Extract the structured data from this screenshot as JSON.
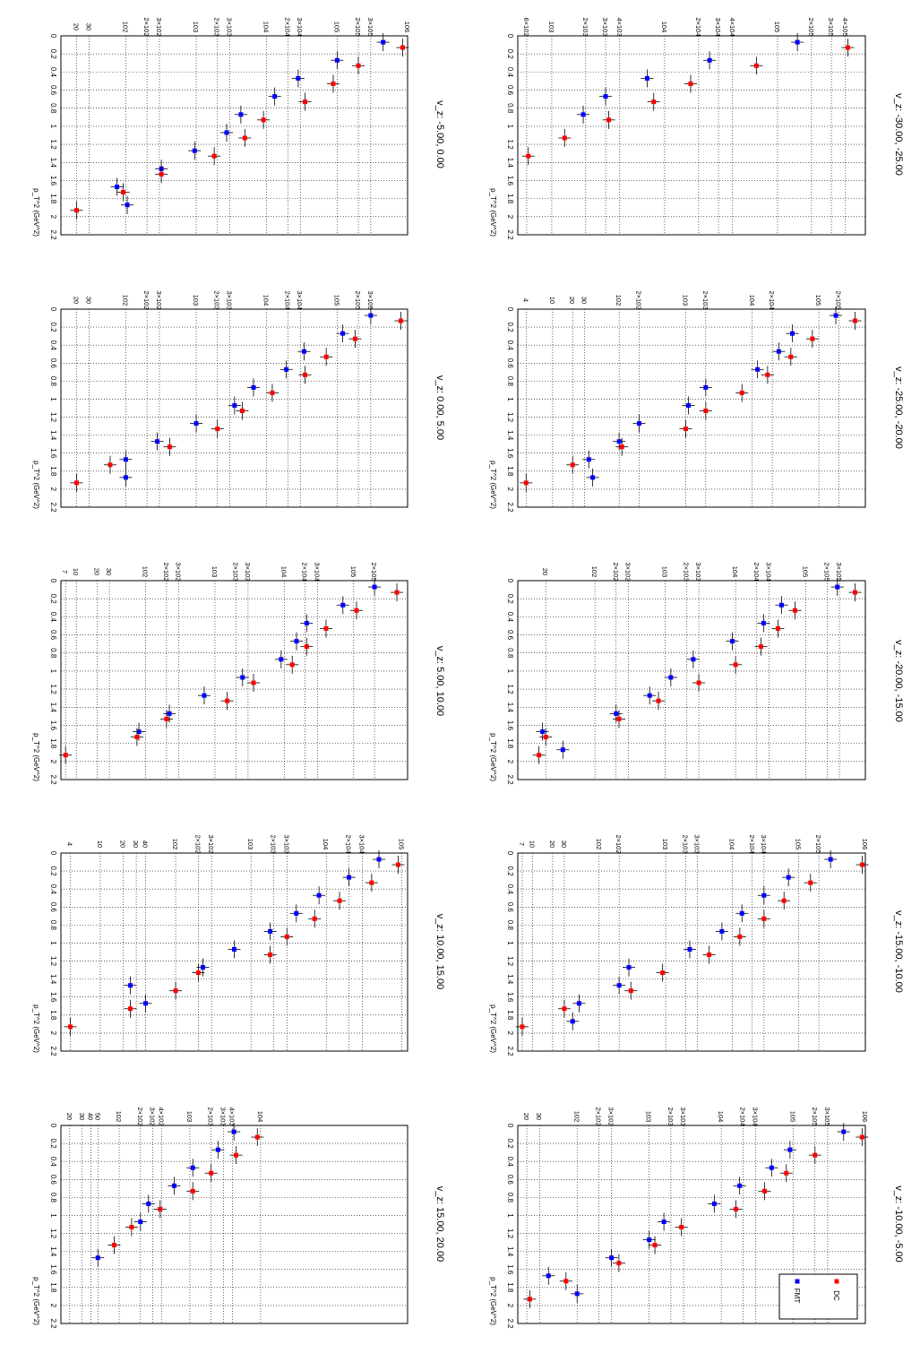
{
  "style": {
    "fmt_color": "#0000ff",
    "dc_color": "#ff0000",
    "grid": true,
    "orientation": "rotated-90-clockwise",
    "x_axis": "p_T^2",
    "y_axis": "log"
  },
  "chart_data": [
    {
      "type": "scatter",
      "title": "v_z: -30.00, -25.00",
      "xlabel": "p_T^2 (GeV^2)",
      "ylabel": "",
      "xlim": [
        0,
        2.2
      ],
      "ylog": true,
      "ylim": [
        500,
        600000
      ],
      "y_ticks": [
        "6×10^2",
        "10^3",
        "2×10^3",
        "3×10^3",
        "4×10^3",
        "10^4",
        "2×10^4",
        "3×10^4",
        "4×10^4",
        "10^5",
        "2×10^5",
        "3×10^5",
        "4×10^5"
      ],
      "y_tick_values": [
        600,
        1000,
        2000,
        3000,
        4000,
        10000,
        20000,
        30000,
        40000,
        100000,
        200000,
        300000,
        400000
      ],
      "x_ticks": [
        "0",
        "0.2",
        "0.4",
        "0.6",
        "0.8",
        "1",
        "1.2",
        "1.4",
        "1.6",
        "1.8",
        "2",
        "2.2"
      ],
      "series": [
        {
          "name": "FMT",
          "color": "#0000ff",
          "x": [
            0.1,
            0.3,
            0.5,
            0.7,
            0.9
          ],
          "y": [
            150000,
            25000,
            7000,
            3000,
            1900
          ]
        },
        {
          "name": "DC",
          "color": "#ff0000",
          "x": [
            0.1,
            0.3,
            0.5,
            0.7,
            0.9,
            1.1,
            1.3
          ],
          "y": [
            420000,
            65000,
            17000,
            8000,
            3200,
            1300,
            620
          ]
        }
      ]
    },
    {
      "type": "scatter",
      "title": "v_z: -5.00, 0.00",
      "xlabel": "p_T^2 (GeV^2)",
      "ylabel": "",
      "xlim": [
        0,
        2.2
      ],
      "ylog": true,
      "ylim": [
        12,
        1000000
      ],
      "y_ticks": [
        "20",
        "30",
        "10^2",
        "2×10^2",
        "3×10^2",
        "10^3",
        "2×10^3",
        "3×10^3",
        "10^4",
        "2×10^4",
        "3×10^4",
        "10^5",
        "2×10^5",
        "3×10^5",
        "10^6"
      ],
      "y_tick_values": [
        20,
        30,
        100,
        200,
        300,
        1000,
        2000,
        3000,
        10000,
        20000,
        30000,
        100000,
        200000,
        300000,
        1000000
      ],
      "x_ticks": [
        "0",
        "0.2",
        "0.4",
        "0.6",
        "0.8",
        "1",
        "1.2",
        "1.4",
        "1.6",
        "1.8",
        "2",
        "2.2"
      ],
      "series": [
        {
          "name": "FMT",
          "color": "#0000ff",
          "x": [
            0.1,
            0.3,
            0.5,
            0.7,
            0.9,
            1.1,
            1.3,
            1.5,
            1.7,
            1.9
          ],
          "y": [
            450000,
            100000,
            28000,
            13000,
            4300,
            2700,
            950,
            320,
            75,
            105
          ]
        },
        {
          "name": "DC",
          "color": "#ff0000",
          "x": [
            0.1,
            0.3,
            0.5,
            0.7,
            0.9,
            1.1,
            1.3,
            1.5,
            1.7,
            1.9
          ],
          "y": [
            850000,
            200000,
            88000,
            35000,
            9000,
            4900,
            1800,
            320,
            92,
            20
          ]
        }
      ]
    },
    {
      "type": "scatter",
      "title": "v_z: -25.00, -20.00",
      "xlabel": "p_T^2 (GeV^2)",
      "ylabel": "",
      "xlim": [
        0,
        2.2
      ],
      "ylog": true,
      "ylim": [
        3,
        500000
      ],
      "y_ticks": [
        "4",
        "10",
        "20",
        "30",
        "10^2",
        "2×10^2",
        "10^3",
        "2×10^3",
        "10^4",
        "2×10^4",
        "10^5",
        "2×10^5"
      ],
      "y_tick_values": [
        4,
        10,
        20,
        30,
        100,
        200,
        1000,
        2000,
        10000,
        20000,
        100000,
        200000
      ],
      "x_ticks": [
        "0",
        "0.2",
        "0.4",
        "0.6",
        "0.8",
        "1",
        "1.2",
        "1.4",
        "1.6",
        "1.8",
        "2",
        "2.2"
      ],
      "series": [
        {
          "name": "FMT",
          "color": "#0000ff",
          "x": [
            0.1,
            0.3,
            0.5,
            0.7,
            0.9,
            1.1,
            1.3,
            1.5,
            1.7,
            1.9
          ],
          "y": [
            180000,
            40000,
            25000,
            12000,
            2000,
            1100,
            200,
            100,
            35,
            40
          ]
        },
        {
          "name": "DC",
          "color": "#ff0000",
          "x": [
            0.1,
            0.3,
            0.5,
            0.7,
            0.9,
            1.1,
            1.3,
            1.5,
            1.7,
            1.9
          ],
          "y": [
            350000,
            80000,
            38000,
            17000,
            7000,
            2000,
            1000,
            110,
            20,
            4
          ]
        }
      ]
    },
    {
      "type": "scatter",
      "title": "v_z: 0.00, 5.00",
      "xlabel": "p_T^2 (GeV^2)",
      "ylabel": "",
      "xlim": [
        0,
        2.2
      ],
      "ylog": true,
      "ylim": [
        12,
        1000000
      ],
      "y_ticks": [
        "20",
        "30",
        "10^2",
        "2×10^2",
        "3×10^2",
        "10^3",
        "2×10^3",
        "3×10^3",
        "10^4",
        "2×10^4",
        "3×10^4",
        "10^5",
        "2×10^5",
        "3×10^5"
      ],
      "y_tick_values": [
        20,
        30,
        100,
        200,
        300,
        1000,
        2000,
        3000,
        10000,
        20000,
        30000,
        100000,
        200000,
        300000
      ],
      "x_ticks": [
        "0",
        "0.2",
        "0.4",
        "0.6",
        "0.8",
        "1",
        "1.2",
        "1.4",
        "1.6",
        "1.8",
        "2",
        "2.2"
      ],
      "series": [
        {
          "name": "FMT",
          "color": "#0000ff",
          "x": [
            0.1,
            0.3,
            0.5,
            0.7,
            0.9,
            1.1,
            1.3,
            1.5,
            1.7,
            1.9
          ],
          "y": [
            300000,
            120000,
            34000,
            19000,
            6500,
            3500,
            1000,
            280,
            100,
            100
          ]
        },
        {
          "name": "DC",
          "color": "#ff0000",
          "x": [
            0.1,
            0.3,
            0.5,
            0.7,
            0.9,
            1.1,
            1.3,
            1.5,
            1.7,
            1.9
          ],
          "y": [
            800000,
            180000,
            70000,
            35000,
            12000,
            4500,
            2000,
            420,
            60,
            20
          ]
        }
      ]
    },
    {
      "type": "scatter",
      "title": "v_z: -20.00, -15.00",
      "xlabel": "p_T^2 (GeV^2)",
      "ylabel": "",
      "xlim": [
        0,
        2.2
      ],
      "ylog": true,
      "ylim": [
        8,
        700000
      ],
      "y_ticks": [
        "20",
        "10^2",
        "2×10^2",
        "3×10^2",
        "10^3",
        "2×10^3",
        "3×10^3",
        "10^4",
        "2×10^4",
        "3×10^4",
        "10^5",
        "2×10^5",
        "3×10^5"
      ],
      "y_tick_values": [
        20,
        100,
        200,
        300,
        1000,
        2000,
        3000,
        10000,
        20000,
        30000,
        100000,
        200000,
        300000
      ],
      "x_ticks": [
        "0",
        "0.2",
        "0.4",
        "0.6",
        "0.8",
        "1",
        "1.2",
        "1.4",
        "1.6",
        "1.8",
        "2",
        "2.2"
      ],
      "series": [
        {
          "name": "FMT",
          "color": "#0000ff",
          "x": [
            0.1,
            0.3,
            0.5,
            0.7,
            0.9,
            1.1,
            1.3,
            1.5,
            1.7,
            1.9
          ],
          "y": [
            280000,
            45000,
            25000,
            9000,
            2500,
            1200,
            600,
            200,
            18,
            35
          ]
        },
        {
          "name": "DC",
          "color": "#ff0000",
          "x": [
            0.1,
            0.3,
            0.5,
            0.7,
            0.9,
            1.1,
            1.3,
            1.5,
            1.7,
            1.9
          ],
          "y": [
            500000,
            70000,
            40000,
            23000,
            10000,
            3000,
            800,
            220,
            20,
            16
          ]
        }
      ]
    },
    {
      "type": "scatter",
      "title": "v_z: 5.00, 10.00",
      "xlabel": "p_T^2 (GeV^2)",
      "ylabel": "",
      "xlim": [
        0,
        2.2
      ],
      "ylog": true,
      "ylim": [
        6,
        600000
      ],
      "y_ticks": [
        "7",
        "10",
        "20",
        "30",
        "10^2",
        "2×10^2",
        "3×10^2",
        "10^3",
        "2×10^3",
        "3×10^3",
        "10^4",
        "2×10^4",
        "3×10^4",
        "10^5",
        "2×10^5"
      ],
      "y_tick_values": [
        7,
        10,
        20,
        30,
        100,
        200,
        300,
        1000,
        2000,
        3000,
        10000,
        20000,
        30000,
        100000,
        200000
      ],
      "x_ticks": [
        "0",
        "0.2",
        "0.4",
        "0.6",
        "0.8",
        "1",
        "1.2",
        "1.4",
        "1.6",
        "1.8",
        "2",
        "2.2"
      ],
      "series": [
        {
          "name": "FMT",
          "color": "#0000ff",
          "x": [
            0.1,
            0.3,
            0.5,
            0.7,
            0.9,
            1.1,
            1.3,
            1.5,
            1.7
          ],
          "y": [
            200000,
            70000,
            21000,
            15000,
            9000,
            2500,
            700,
            220,
            80
          ]
        },
        {
          "name": "DC",
          "color": "#ff0000",
          "x": [
            0.1,
            0.3,
            0.5,
            0.7,
            0.9,
            1.1,
            1.3,
            1.5,
            1.7,
            1.9
          ],
          "y": [
            420000,
            110000,
            40000,
            21000,
            13000,
            3600,
            1500,
            200,
            75,
            7
          ]
        }
      ]
    },
    {
      "type": "scatter",
      "title": "v_z: -15.00, -10.00",
      "xlabel": "p_T^2 (GeV^2)",
      "ylabel": "",
      "xlim": [
        0,
        2.2
      ],
      "ylog": true,
      "ylim": [
        6,
        1000000
      ],
      "y_ticks": [
        "7",
        "10",
        "20",
        "30",
        "10^2",
        "2×10^2",
        "10^3",
        "2×10^3",
        "3×10^3",
        "10^4",
        "2×10^4",
        "3×10^4",
        "10^5",
        "2×10^5",
        "10^6"
      ],
      "y_tick_values": [
        7,
        10,
        20,
        30,
        100,
        200,
        1000,
        2000,
        3000,
        10000,
        20000,
        30000,
        100000,
        200000,
        1000000
      ],
      "x_ticks": [
        "0",
        "0.2",
        "0.4",
        "0.6",
        "0.8",
        "1",
        "1.2",
        "1.4",
        "1.6",
        "1.8",
        "2",
        "2.2"
      ],
      "series": [
        {
          "name": "FMT",
          "color": "#0000ff",
          "x": [
            0.1,
            0.3,
            0.5,
            0.7,
            0.9,
            1.1,
            1.3,
            1.5,
            1.7,
            1.9
          ],
          "y": [
            300000,
            70000,
            30000,
            14000,
            7000,
            2300,
            280,
            200,
            50,
            40
          ]
        },
        {
          "name": "DC",
          "color": "#ff0000",
          "x": [
            0.1,
            0.3,
            0.5,
            0.7,
            0.9,
            1.1,
            1.3,
            1.5,
            1.7,
            1.9
          ],
          "y": [
            900000,
            150000,
            60000,
            30000,
            13000,
            4500,
            900,
            300,
            30,
            7
          ]
        }
      ]
    },
    {
      "type": "scatter",
      "title": "v_z: 10.00, 15.00",
      "xlabel": "p_T^2 (GeV^2)",
      "ylabel": "",
      "xlim": [
        0,
        2.2
      ],
      "ylog": true,
      "ylim": [
        3,
        120000
      ],
      "y_ticks": [
        "4",
        "10",
        "20",
        "30",
        "40",
        "10^2",
        "2×10^2",
        "3×10^2",
        "10^3",
        "2×10^3",
        "3×10^3",
        "10^4",
        "2×10^4",
        "3×10^4",
        "10^5"
      ],
      "y_tick_values": [
        4,
        10,
        20,
        30,
        40,
        100,
        200,
        300,
        1000,
        2000,
        3000,
        10000,
        20000,
        30000,
        100000
      ],
      "x_ticks": [
        "0",
        "0.2",
        "0.4",
        "0.6",
        "0.8",
        "1",
        "1.2",
        "1.4",
        "1.6",
        "1.8",
        "2",
        "2.2"
      ],
      "series": [
        {
          "name": "FMT",
          "color": "#0000ff",
          "x": [
            0.1,
            0.3,
            0.5,
            0.7,
            0.9,
            1.1,
            1.3,
            1.5,
            1.7
          ],
          "y": [
            50000,
            20000,
            8000,
            4000,
            1800,
            600,
            230,
            25,
            40
          ]
        },
        {
          "name": "DC",
          "color": "#ff0000",
          "x": [
            0.1,
            0.3,
            0.5,
            0.7,
            0.9,
            1.1,
            1.3,
            1.5,
            1.7,
            1.9
          ],
          "y": [
            90000,
            40000,
            15000,
            7000,
            3000,
            1800,
            200,
            100,
            25,
            4
          ]
        }
      ]
    },
    {
      "type": "scatter",
      "title": "v_z: -10.00, -5.00",
      "xlabel": "p_T^2 (GeV^2)",
      "ylabel": "",
      "xlim": [
        0,
        2.2
      ],
      "ylog": true,
      "ylim": [
        15,
        1000000
      ],
      "y_ticks": [
        "20",
        "30",
        "10^2",
        "2×10^2",
        "3×10^2",
        "10^3",
        "2×10^3",
        "3×10^3",
        "10^4",
        "2×10^4",
        "3×10^4",
        "10^5",
        "2×10^5",
        "3×10^5",
        "10^6"
      ],
      "y_tick_values": [
        20,
        30,
        100,
        200,
        300,
        1000,
        2000,
        3000,
        10000,
        20000,
        30000,
        100000,
        200000,
        300000,
        1000000
      ],
      "x_ticks": [
        "0",
        "0.2",
        "0.4",
        "0.6",
        "0.8",
        "1",
        "1.2",
        "1.4",
        "1.6",
        "1.8",
        "2",
        "2.2"
      ],
      "series": [
        {
          "name": "FMT",
          "color": "#0000ff",
          "x": [
            0.1,
            0.3,
            0.5,
            0.7,
            0.9,
            1.1,
            1.3,
            1.5,
            1.7,
            1.9
          ],
          "y": [
            500000,
            90000,
            50000,
            18000,
            8000,
            1600,
            1000,
            300,
            40,
            100
          ]
        },
        {
          "name": "DC",
          "color": "#ff0000",
          "x": [
            0.1,
            0.3,
            0.5,
            0.7,
            0.9,
            1.1,
            1.3,
            1.5,
            1.7,
            1.9
          ],
          "y": [
            900000,
            200000,
            80000,
            40000,
            16000,
            2800,
            1200,
            380,
            70,
            22
          ]
        }
      ],
      "legend": {
        "position": "bottom-right (rotated)",
        "entries": [
          "FMT",
          "DC"
        ]
      }
    },
    {
      "type": "scatter",
      "title": "v_z: 15.00, 20.00",
      "xlabel": "p_T^2 (GeV^2)",
      "ylabel": "",
      "xlim": [
        0,
        2.2
      ],
      "ylog": true,
      "ylim": [
        15,
        1200000
      ],
      "y_ticks": [
        "20",
        "30",
        "40",
        "50",
        "10^2",
        "2×10^2",
        "3×10^2",
        "4×10^2",
        "10^3",
        "2×10^3",
        "3×10^3",
        "4×10^3",
        "10^4"
      ],
      "y_tick_values": [
        20,
        30,
        40,
        50,
        100,
        200,
        300,
        400,
        1000,
        2000,
        3000,
        4000,
        10000
      ],
      "x_ticks": [
        "0",
        "0.2",
        "0.4",
        "0.6",
        "0.8",
        "1",
        "1.2",
        "1.4",
        "1.6",
        "1.8",
        "2",
        "2.2"
      ],
      "series": [
        {
          "name": "FMT",
          "color": "#0000ff",
          "x": [
            0.1,
            0.3,
            0.5,
            0.7,
            0.9,
            1.1,
            1.5
          ],
          "y": [
            4200,
            2500,
            1100,
            600,
            260,
            200,
            50
          ]
        },
        {
          "name": "DC",
          "color": "#ff0000",
          "x": [
            0.1,
            0.3,
            0.5,
            0.7,
            0.9,
            1.1,
            1.3
          ],
          "y": [
            9000,
            4500,
            2000,
            1100,
            380,
            150,
            85
          ]
        }
      ]
    }
  ]
}
